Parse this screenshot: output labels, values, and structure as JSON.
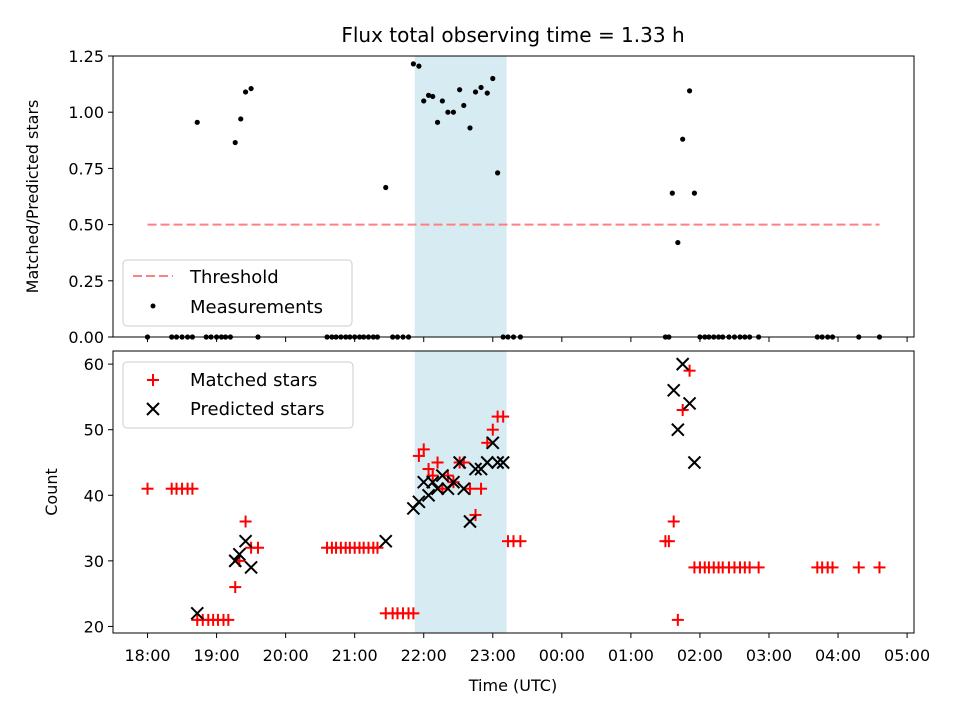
{
  "title": "Flux total observing time = 1.33 h",
  "chart_data": [
    {
      "type": "scatter",
      "ylabel": "Matched/Predicted stars",
      "ylim": [
        0,
        1.25
      ],
      "yticks": [
        "0.00",
        "0.25",
        "0.50",
        "0.75",
        "1.00",
        "1.25"
      ],
      "xlim_hours": [
        17.5,
        29.1
      ],
      "shaded_span_hours": [
        21.87,
        23.2
      ],
      "legend": {
        "position": "lower-left",
        "entries": [
          "Threshold",
          "Measurements"
        ]
      },
      "threshold": {
        "name": "Threshold",
        "y": 0.5,
        "x_range_hours": [
          18.0,
          28.6
        ],
        "color": "#ff8080"
      },
      "measurements": {
        "name": "Measurements",
        "color": "#000000",
        "x_hours": [
          18.0,
          18.35,
          18.42,
          18.5,
          18.58,
          18.65,
          18.72,
          18.85,
          18.92,
          19.0,
          19.07,
          19.13,
          19.2,
          19.27,
          19.35,
          19.42,
          19.5,
          19.6,
          20.6,
          20.67,
          20.73,
          20.8,
          20.87,
          20.93,
          21.0,
          21.07,
          21.13,
          21.2,
          21.27,
          21.33,
          21.45,
          21.55,
          21.62,
          21.7,
          21.78,
          21.85,
          21.93,
          22.0,
          22.07,
          22.13,
          22.2,
          22.27,
          22.35,
          22.43,
          22.52,
          22.58,
          22.67,
          22.75,
          22.83,
          22.92,
          23.0,
          23.07,
          23.15,
          23.22,
          23.3,
          23.4,
          25.5,
          25.55,
          25.6,
          25.68,
          25.75,
          25.85,
          25.92,
          26.0,
          26.07,
          26.13,
          26.2,
          26.27,
          26.33,
          26.42,
          26.5,
          26.58,
          26.65,
          26.72,
          26.85,
          27.7,
          27.77,
          27.85,
          27.92,
          28.3,
          28.6
        ],
        "y": [
          0,
          0,
          0,
          0,
          0,
          0,
          0.955,
          0,
          0,
          0,
          0,
          0,
          0,
          0.865,
          0.97,
          1.09,
          1.105,
          0,
          0,
          0,
          0,
          0,
          0,
          0,
          0,
          0,
          0,
          0,
          0,
          0,
          0.665,
          0,
          0,
          0,
          0,
          1.215,
          1.205,
          1.05,
          1.075,
          1.07,
          0.955,
          1.05,
          1.0,
          1.0,
          1.1,
          1.03,
          0.93,
          1.09,
          1.11,
          1.085,
          1.15,
          0.73,
          0,
          0,
          0,
          0,
          0,
          0,
          0.64,
          0.42,
          0.88,
          1.095,
          0.64,
          0,
          0,
          0,
          0,
          0,
          0,
          0,
          0,
          0,
          0,
          0,
          0,
          0,
          0,
          0,
          0,
          0,
          0
        ]
      }
    },
    {
      "type": "scatter",
      "xlabel": "Time (UTC)",
      "ylabel": "Count",
      "ylim": [
        19,
        62
      ],
      "yticks": [
        "20",
        "30",
        "40",
        "50",
        "60"
      ],
      "xticks": [
        "18:00",
        "19:00",
        "20:00",
        "21:00",
        "22:00",
        "23:00",
        "00:00",
        "01:00",
        "02:00",
        "03:00",
        "04:00",
        "05:00"
      ],
      "xlim_hours": [
        17.5,
        29.1
      ],
      "shaded_span_hours": [
        21.87,
        23.2
      ],
      "legend": {
        "position": "upper-left",
        "entries": [
          "Matched stars",
          "Predicted stars"
        ]
      },
      "series": [
        {
          "name": "Matched stars",
          "marker": "plus",
          "color": "#ff0000",
          "x_hours": [
            18.0,
            18.35,
            18.42,
            18.5,
            18.58,
            18.65,
            18.72,
            18.8,
            18.88,
            18.95,
            19.02,
            19.1,
            19.17,
            19.27,
            19.33,
            19.42,
            19.5,
            19.6,
            20.6,
            20.67,
            20.73,
            20.8,
            20.87,
            20.93,
            21.0,
            21.07,
            21.13,
            21.2,
            21.27,
            21.33,
            21.45,
            21.55,
            21.62,
            21.7,
            21.78,
            21.85,
            21.93,
            22.0,
            22.07,
            22.13,
            22.2,
            22.27,
            22.35,
            22.43,
            22.52,
            22.58,
            22.67,
            22.75,
            22.83,
            22.92,
            23.0,
            23.07,
            23.15,
            23.22,
            23.3,
            23.4,
            25.5,
            25.55,
            25.62,
            25.68,
            25.75,
            25.85,
            25.92,
            26.0,
            26.07,
            26.13,
            26.2,
            26.27,
            26.33,
            26.42,
            26.5,
            26.58,
            26.65,
            26.72,
            26.85,
            27.7,
            27.77,
            27.85,
            27.92,
            28.3,
            28.6
          ],
          "values": [
            41,
            41,
            41,
            41,
            41,
            41,
            21,
            21,
            21,
            21,
            21,
            21,
            21,
            26,
            30,
            36,
            32,
            32,
            32,
            32,
            32,
            32,
            32,
            32,
            32,
            32,
            32,
            32,
            32,
            32,
            22,
            22,
            22,
            22,
            22,
            22,
            46,
            47,
            44,
            43,
            45,
            41,
            43,
            42,
            45,
            45,
            41,
            37,
            41,
            48,
            50,
            52,
            52,
            33,
            33,
            33,
            33,
            33,
            36,
            21,
            53,
            59,
            29,
            29,
            29,
            29,
            29,
            29,
            29,
            29,
            29,
            29,
            29,
            29,
            29,
            29,
            29,
            29,
            29,
            29,
            29
          ]
        },
        {
          "name": "Predicted stars",
          "marker": "x",
          "color": "#000000",
          "x_hours": [
            18.72,
            19.27,
            19.33,
            19.42,
            19.5,
            21.45,
            21.85,
            21.93,
            22.0,
            22.07,
            22.13,
            22.2,
            22.27,
            22.35,
            22.43,
            22.52,
            22.58,
            22.67,
            22.75,
            22.83,
            22.92,
            23.0,
            23.07,
            23.15,
            25.62,
            25.68,
            25.75,
            25.85,
            25.92
          ],
          "values": [
            22,
            30,
            31,
            33,
            29,
            33,
            38,
            39,
            42,
            40,
            42,
            41,
            43,
            41,
            42,
            45,
            41,
            36,
            44,
            44,
            45,
            48,
            45,
            45,
            56,
            50,
            60,
            54,
            45
          ]
        }
      ]
    }
  ]
}
